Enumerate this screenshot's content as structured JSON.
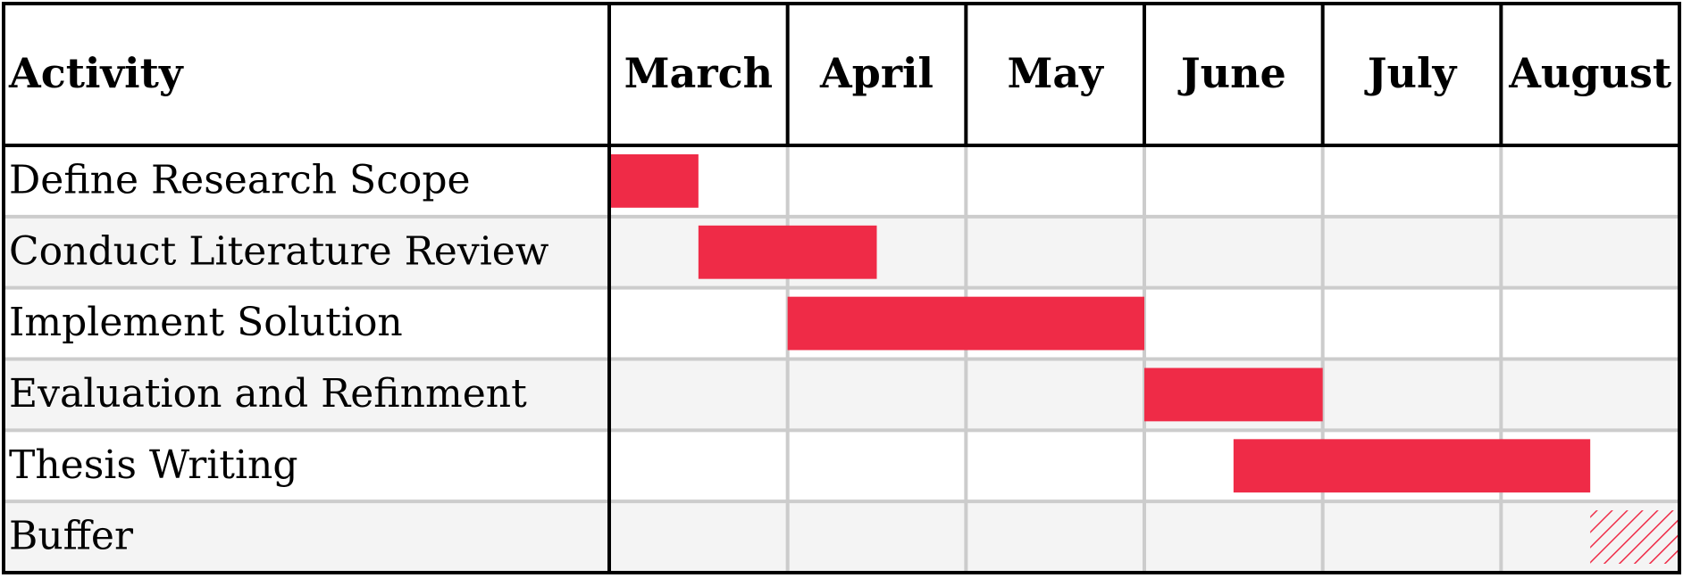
{
  "chart_data": {
    "type": "gantt",
    "header": {
      "activity_label": "Activity"
    },
    "months": [
      "March",
      "April",
      "May",
      "June",
      "July",
      "August"
    ],
    "tasks": [
      {
        "name": "Define Research Scope",
        "start": 0.0,
        "end": 0.5,
        "style": "solid"
      },
      {
        "name": "Conduct Literature Review",
        "start": 0.5,
        "end": 1.5,
        "style": "solid"
      },
      {
        "name": "Implement Solution",
        "start": 1.0,
        "end": 3.0,
        "style": "solid"
      },
      {
        "name": "Evaluation and Refinment",
        "start": 3.0,
        "end": 4.0,
        "style": "solid"
      },
      {
        "name": "Thesis Writing",
        "start": 3.5,
        "end": 5.5,
        "style": "solid"
      },
      {
        "name": "Buffer",
        "start": 5.5,
        "end": 6.0,
        "style": "hatched"
      }
    ],
    "colors": {
      "bar": "#EF2B47",
      "border": "#000000",
      "grid": "#CCCCCC",
      "row_alt": "#F4F4F4",
      "row_base": "#FFFFFF",
      "text": "#000000"
    }
  }
}
